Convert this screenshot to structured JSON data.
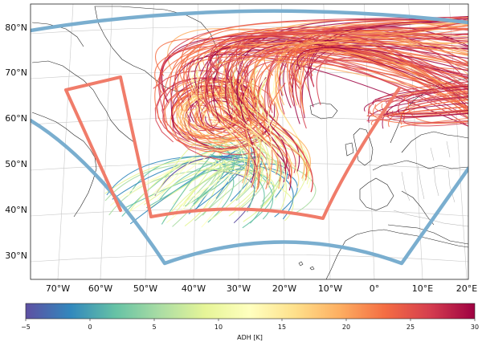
{
  "map": {
    "lon_labels": [
      "70°W",
      "60°W",
      "50°W",
      "40°W",
      "30°W",
      "20°W",
      "10°W",
      "0°",
      "10°E",
      "20°E"
    ],
    "lat_labels": [
      "80°N",
      "70°N",
      "60°N",
      "50°N",
      "40°N",
      "30°N"
    ]
  },
  "colorbar": {
    "label": "ADH [K]",
    "tick_labels": [
      "−5",
      "0",
      "5",
      "10",
      "15",
      "20",
      "25",
      "30"
    ],
    "range": [
      -5,
      30
    ],
    "cmap": "Spectral_r",
    "stops": [
      "#5e4fa2",
      "#3288bd",
      "#66c2a5",
      "#abdda4",
      "#e6f598",
      "#ffffbf",
      "#fee08b",
      "#fdae61",
      "#f46d43",
      "#d53e4f",
      "#9e0142"
    ]
  },
  "domains": {
    "outer_color": "#7aaecf",
    "inner_color": "#f07c6a"
  }
}
